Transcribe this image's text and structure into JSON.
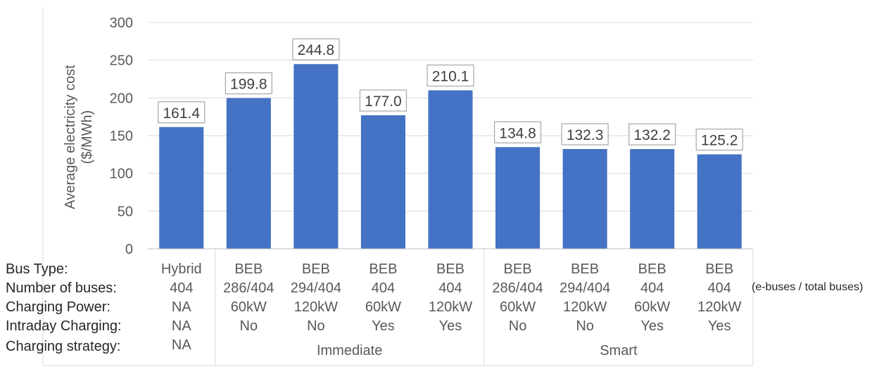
{
  "chart_data": {
    "type": "bar",
    "ylabel": [
      "Average electricity cost",
      "($/MWh)"
    ],
    "ylim": [
      0,
      300
    ],
    "yticks": [
      0,
      50,
      100,
      150,
      200,
      250,
      300
    ],
    "grid": true,
    "bar_color": "#4472C4",
    "categories": [
      {
        "bus_type": "Hybrid",
        "num_buses": "404",
        "power": "NA",
        "intraday": "NA"
      },
      {
        "bus_type": "BEB",
        "num_buses": "286/404",
        "power": "60kW",
        "intraday": "No"
      },
      {
        "bus_type": "BEB",
        "num_buses": "294/404",
        "power": "120kW",
        "intraday": "No"
      },
      {
        "bus_type": "BEB",
        "num_buses": "404",
        "power": "60kW",
        "intraday": "Yes"
      },
      {
        "bus_type": "BEB",
        "num_buses": "404",
        "power": "120kW",
        "intraday": "Yes"
      },
      {
        "bus_type": "BEB",
        "num_buses": "286/404",
        "power": "60kW",
        "intraday": "No"
      },
      {
        "bus_type": "BEB",
        "num_buses": "294/404",
        "power": "120kW",
        "intraday": "No"
      },
      {
        "bus_type": "BEB",
        "num_buses": "404",
        "power": "60kW",
        "intraday": "Yes"
      },
      {
        "bus_type": "BEB",
        "num_buses": "404",
        "power": "120kW",
        "intraday": "Yes"
      }
    ],
    "values": [
      161.4,
      199.8,
      244.8,
      177.0,
      210.1,
      134.8,
      132.3,
      132.2,
      125.2
    ],
    "data_labels": [
      "161.4",
      "199.8",
      "244.8",
      "177.0",
      "210.1",
      "134.8",
      "132.3",
      "132.2",
      "125.2"
    ],
    "row_labels": [
      "Bus Type:",
      "Number of buses:",
      "Charging Power:",
      "Intraday Charging:",
      "Charging strategy:"
    ],
    "strategy_groups": [
      {
        "label": "NA",
        "span": 1
      },
      {
        "label": "Immediate",
        "span": 4
      },
      {
        "label": "Smart",
        "span": 4
      }
    ],
    "note": "(e-buses / total buses)"
  }
}
